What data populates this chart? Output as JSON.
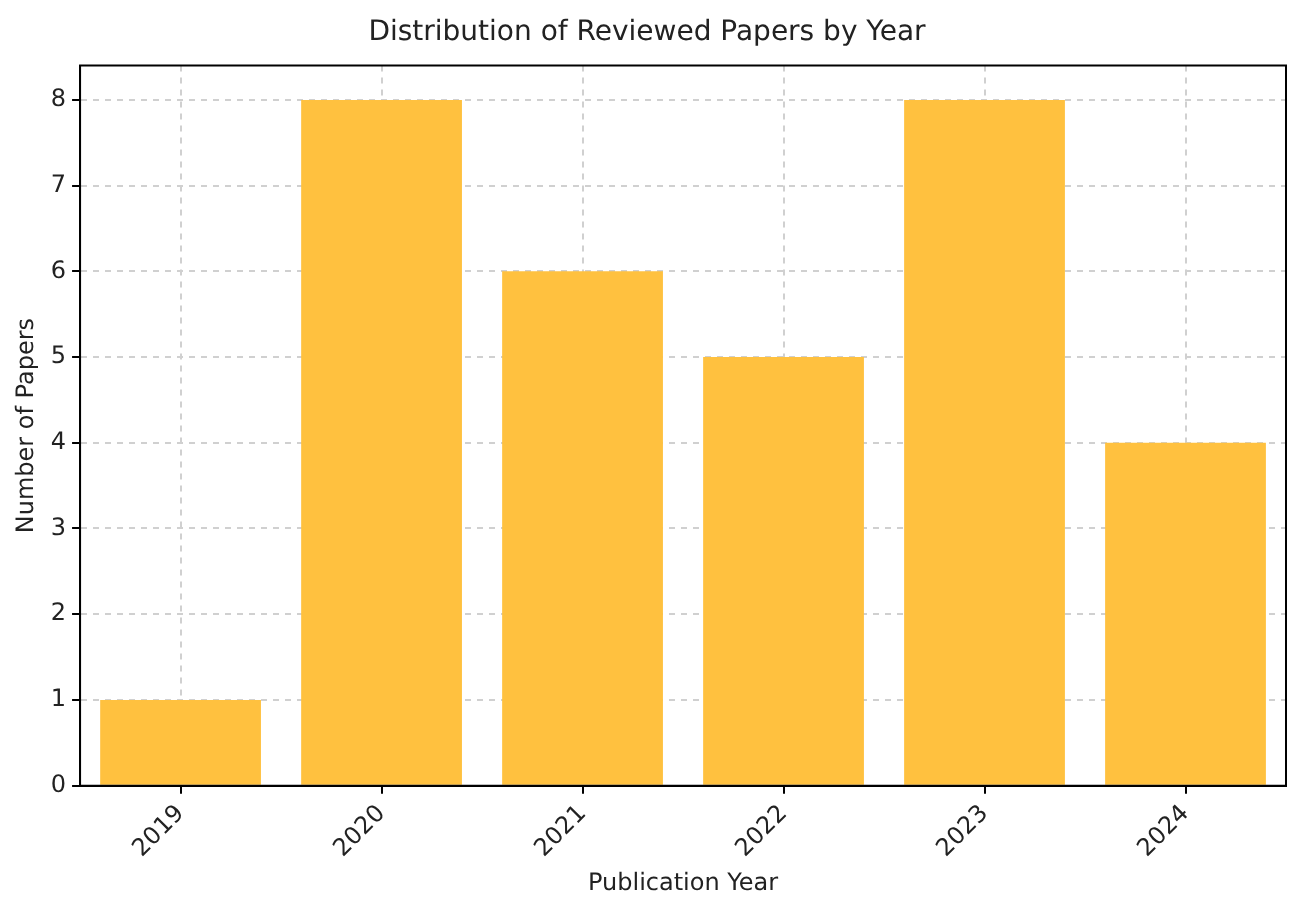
{
  "chart_data": {
    "type": "bar",
    "title": "Distribution of Reviewed Papers by Year",
    "xlabel": "Publication Year",
    "ylabel": "Number of Papers",
    "categories": [
      "2019",
      "2020",
      "2021",
      "2022",
      "2023",
      "2024"
    ],
    "values": [
      1,
      8,
      6,
      5,
      8,
      4
    ],
    "color": "#ffc13f",
    "ylim": [
      0,
      8.4
    ],
    "yticks": [
      0,
      1,
      2,
      3,
      4,
      5,
      6,
      7,
      8
    ],
    "grid": true
  }
}
